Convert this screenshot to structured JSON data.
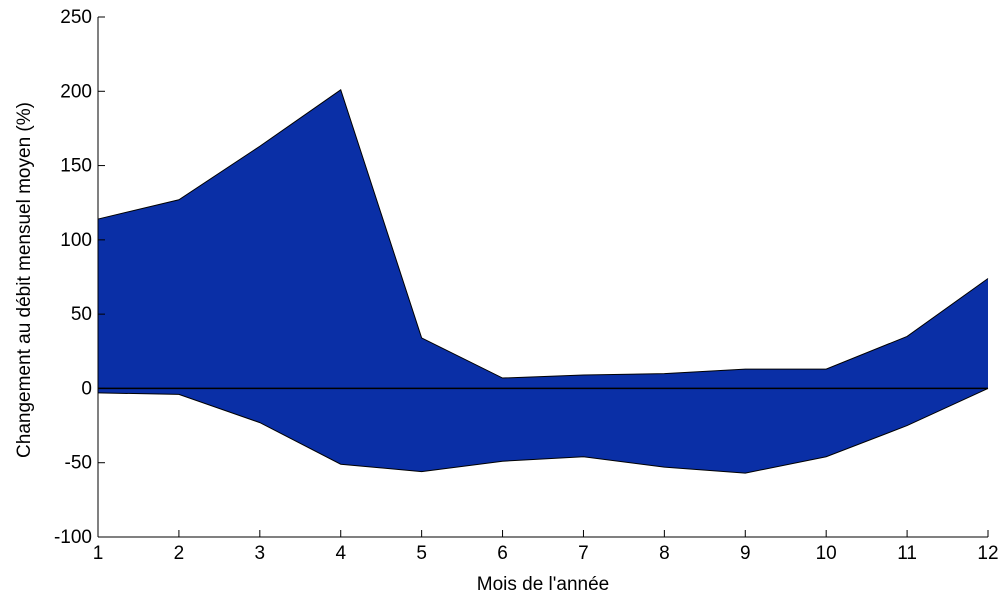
{
  "chart_data": {
    "type": "area",
    "xlabel": "Mois de l'année",
    "ylabel": "Changement au débit mensuel moyen (%)",
    "x": [
      1,
      2,
      3,
      4,
      5,
      6,
      7,
      8,
      9,
      10,
      11,
      12
    ],
    "xlim": [
      1,
      12
    ],
    "ylim": [
      -100,
      250
    ],
    "xticks": [
      1,
      2,
      3,
      4,
      5,
      6,
      7,
      8,
      9,
      10,
      11,
      12
    ],
    "yticks": [
      -100,
      -50,
      0,
      50,
      100,
      150,
      200,
      250
    ],
    "grid": false,
    "series": [
      {
        "role": "upper",
        "values": [
          114,
          127,
          163,
          201,
          34,
          7,
          9,
          10,
          13,
          13,
          35,
          74
        ]
      },
      {
        "role": "lower",
        "values": [
          -3,
          -4,
          -23,
          -51,
          -56,
          -49,
          -46,
          -53,
          -57,
          -46,
          -25,
          0
        ]
      }
    ],
    "baseline": 0,
    "fill_color": "#0a2fa6",
    "outline_color": "#000000"
  }
}
